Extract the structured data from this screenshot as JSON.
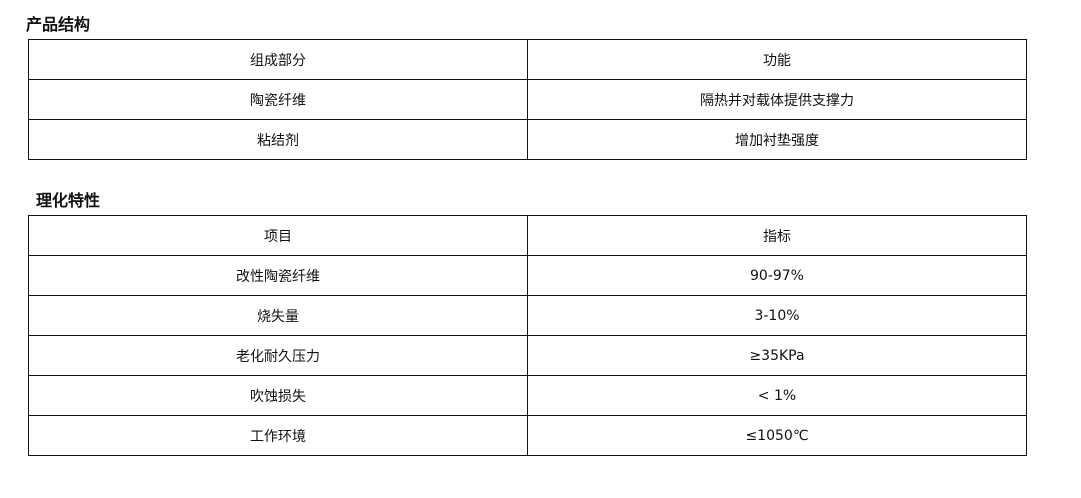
{
  "structure": {
    "title": "产品结构",
    "header": [
      "组成部分",
      "功能"
    ],
    "rows": [
      [
        "陶瓷纤维",
        "隔热并对载体提供支撑力"
      ],
      [
        "粘结剂",
        "增加衬垫强度"
      ]
    ]
  },
  "properties": {
    "title": "理化特性",
    "header": [
      "项目",
      "指标"
    ],
    "rows": [
      [
        "改性陶瓷纤维",
        "90-97%"
      ],
      [
        "烧失量",
        "3-10%"
      ],
      [
        "老化耐久压力",
        "≥35KPa"
      ],
      [
        "吹蚀损失",
        "< 1%"
      ],
      [
        "工作环境",
        "≤1050℃"
      ]
    ]
  }
}
